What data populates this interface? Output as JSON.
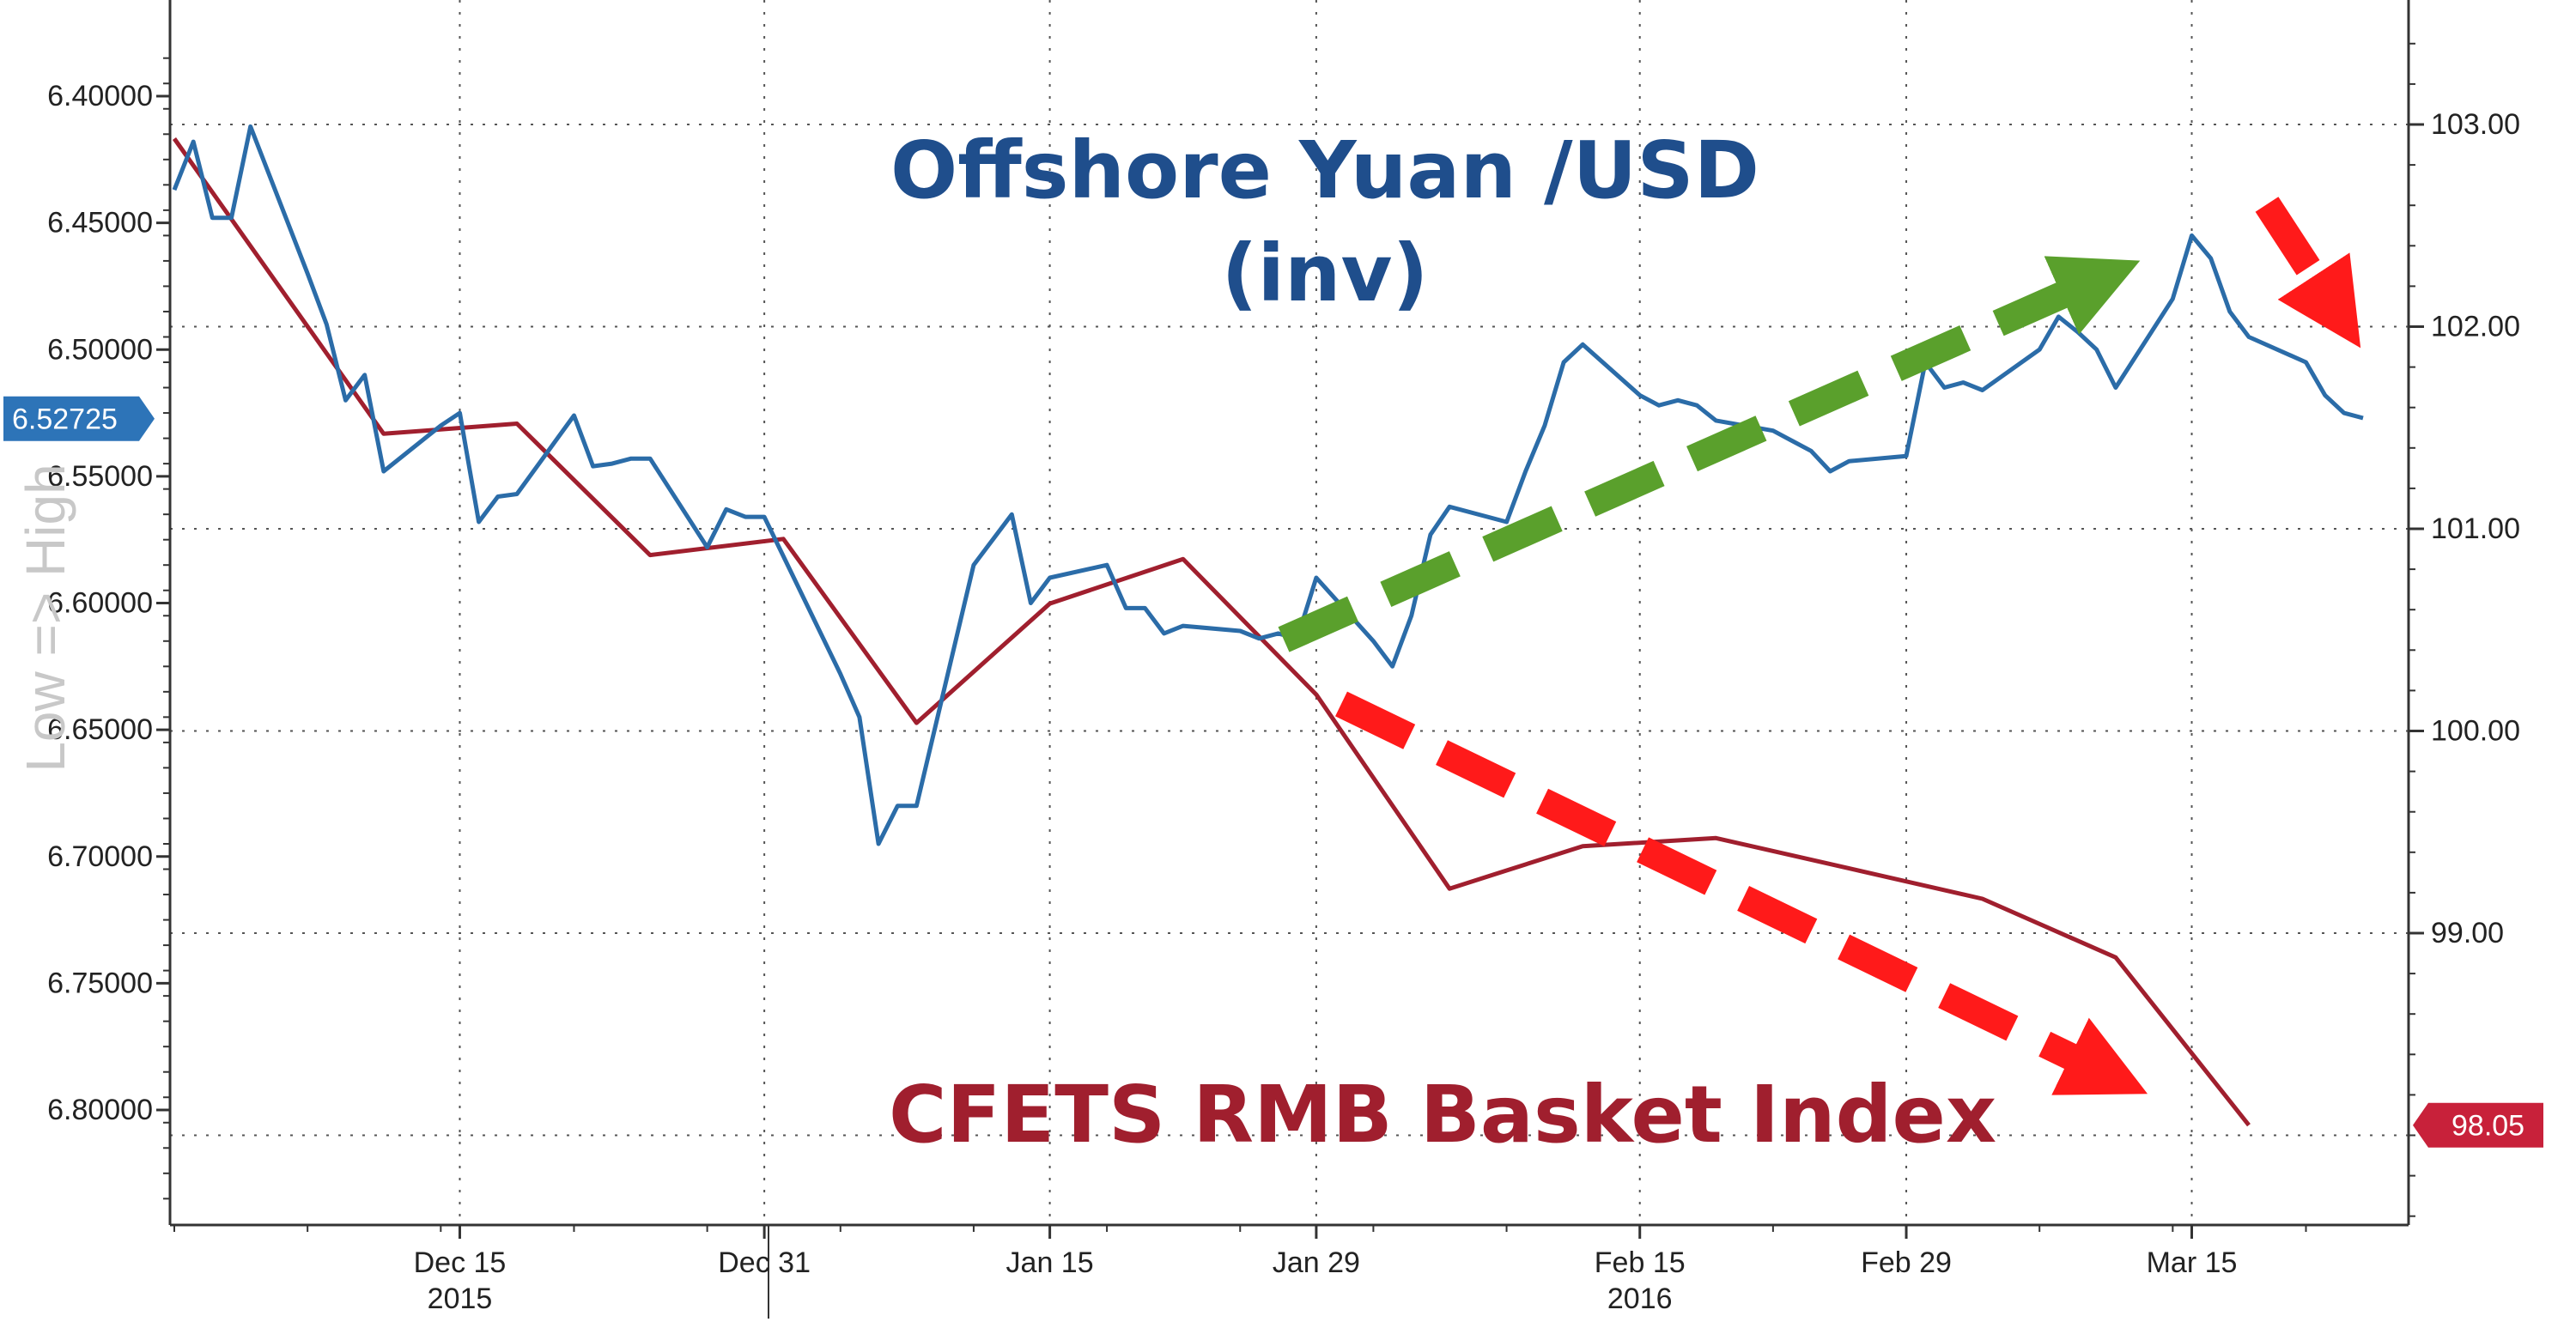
{
  "chart_data": {
    "type": "line",
    "title": "",
    "x_labels": [
      "Dec 15",
      "Dec 31",
      "Jan 15",
      "Jan 29",
      "Feb 15",
      "Feb 29",
      "Mar 15"
    ],
    "year_labels": [
      "2015",
      "2016"
    ],
    "left_axis": {
      "label": "Low => High",
      "inverted": true,
      "ylim": [
        6.38,
        6.85
      ],
      "ticks": [
        "6.40000",
        "6.45000",
        "6.50000",
        "6.55000",
        "6.60000",
        "6.65000",
        "6.70000",
        "6.75000",
        "6.80000"
      ],
      "tick_values": [
        6.4,
        6.45,
        6.5,
        6.55,
        6.6,
        6.65,
        6.7,
        6.75,
        6.8
      ],
      "last_value_label": "6.52725",
      "last_value": 6.52725
    },
    "right_axis": {
      "ylim": [
        97.55,
        103.5
      ],
      "ticks": [
        "103.00",
        "102.00",
        "101.00",
        "100.00",
        "99.00"
      ],
      "tick_values": [
        103,
        102,
        101,
        100,
        99
      ],
      "last_value_label": "98.05",
      "last_value": 98.05
    },
    "series": [
      {
        "name": "Offshore Yuan /USD (inv)",
        "axis": "left",
        "color": "#2b6ca8",
        "x": [
          "2015-11-30",
          "2015-12-01",
          "2015-12-02",
          "2015-12-03",
          "2015-12-04",
          "2015-12-07",
          "2015-12-08",
          "2015-12-09",
          "2015-12-10",
          "2015-12-11",
          "2015-12-14",
          "2015-12-15",
          "2015-12-16",
          "2015-12-17",
          "2015-12-18",
          "2015-12-21",
          "2015-12-22",
          "2015-12-23",
          "2015-12-24",
          "2015-12-25",
          "2015-12-28",
          "2015-12-29",
          "2015-12-30",
          "2015-12-31",
          "2016-01-04",
          "2016-01-05",
          "2016-01-06",
          "2016-01-07",
          "2016-01-08",
          "2016-01-11",
          "2016-01-12",
          "2016-01-13",
          "2016-01-14",
          "2016-01-15",
          "2016-01-18",
          "2016-01-19",
          "2016-01-20",
          "2016-01-21",
          "2016-01-22",
          "2016-01-25",
          "2016-01-26",
          "2016-01-27",
          "2016-01-28",
          "2016-01-29",
          "2016-02-01",
          "2016-02-02",
          "2016-02-03",
          "2016-02-04",
          "2016-02-05",
          "2016-02-08",
          "2016-02-09",
          "2016-02-10",
          "2016-02-11",
          "2016-02-12",
          "2016-02-15",
          "2016-02-16",
          "2016-02-17",
          "2016-02-18",
          "2016-02-19",
          "2016-02-22",
          "2016-02-23",
          "2016-02-24",
          "2016-02-25",
          "2016-02-26",
          "2016-02-29",
          "2016-03-01",
          "2016-03-02",
          "2016-03-03",
          "2016-03-04",
          "2016-03-07",
          "2016-03-08",
          "2016-03-09",
          "2016-03-10",
          "2016-03-11",
          "2016-03-14",
          "2016-03-15",
          "2016-03-16",
          "2016-03-17",
          "2016-03-18",
          "2016-03-21",
          "2016-03-22",
          "2016-03-23",
          "2016-03-24"
        ],
        "values": [
          6.437,
          6.418,
          6.448,
          6.448,
          6.412,
          6.47,
          6.49,
          6.52,
          6.51,
          6.548,
          6.53,
          6.525,
          6.568,
          6.558,
          6.557,
          6.526,
          6.546,
          6.545,
          6.543,
          6.543,
          6.578,
          6.563,
          6.566,
          6.566,
          6.628,
          6.645,
          6.695,
          6.68,
          6.68,
          6.585,
          6.575,
          6.565,
          6.6,
          6.59,
          6.585,
          6.602,
          6.602,
          6.612,
          6.609,
          6.611,
          6.614,
          6.612,
          6.614,
          6.59,
          6.615,
          6.625,
          6.605,
          6.573,
          6.562,
          6.568,
          6.548,
          6.53,
          6.505,
          6.498,
          6.518,
          6.522,
          6.52,
          6.522,
          6.528,
          6.532,
          6.536,
          6.54,
          6.548,
          6.544,
          6.542,
          6.505,
          6.515,
          6.513,
          6.516,
          6.5,
          6.487,
          6.493,
          6.5,
          6.515,
          6.48,
          6.455,
          6.464,
          6.485,
          6.495,
          6.505,
          6.518,
          6.525,
          6.527
        ]
      },
      {
        "name": "CFETS RMB Basket Index",
        "axis": "right",
        "color": "#a01f2e",
        "x": [
          "2015-11-30",
          "2015-12-11",
          "2015-12-18",
          "2015-12-25",
          "2016-01-01",
          "2016-01-08",
          "2016-01-15",
          "2016-01-22",
          "2016-01-29",
          "2016-02-05",
          "2016-02-12",
          "2016-02-19",
          "2016-02-26",
          "2016-03-04",
          "2016-03-11",
          "2016-03-18"
        ],
        "values": [
          102.93,
          101.47,
          101.52,
          100.87,
          100.95,
          100.04,
          100.63,
          100.85,
          100.18,
          99.22,
          99.43,
          99.47,
          99.32,
          99.17,
          98.88,
          98.05
        ]
      }
    ],
    "annotations": {
      "blue_title_line1": "Offshore Yuan /USD",
      "blue_title_line2": "(inv)",
      "red_title": "CFETS RMB Basket Index"
    },
    "legend": "none",
    "grid": true,
    "colors": {
      "blue_line": "#2b6ca8",
      "red_line": "#a01f2e",
      "green_arrow": "#5aa02c",
      "red_arrow": "#ff1a1a",
      "left_badge": "#2d74b8",
      "right_badge": "#c8213a"
    }
  }
}
